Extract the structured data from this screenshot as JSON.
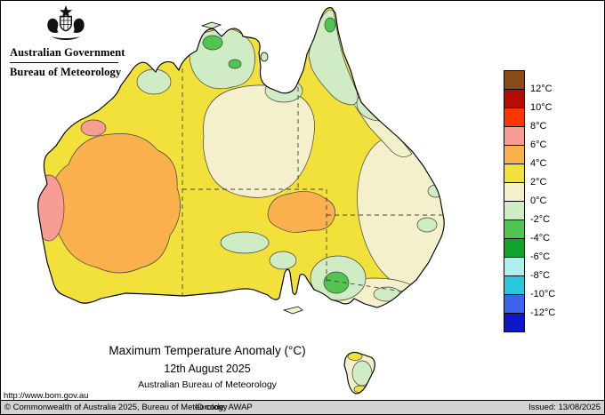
{
  "logo": {
    "government": "Australian Government",
    "bureau": "Bureau of Meteorology"
  },
  "titles": {
    "main": "Maximum Temperature Anomaly (°C)",
    "date": "12th August 2025",
    "org": "Australian Bureau of Meteorology"
  },
  "legend": {
    "labels": [
      "12°C",
      "10°C",
      "8°C",
      "6°C",
      "4°C",
      "2°C",
      "0°C",
      "-2°C",
      "-4°C",
      "-6°C",
      "-8°C",
      "-10°C",
      "-12°C"
    ],
    "colors": [
      "#8a4a17",
      "#b50b00",
      "#fd3500",
      "#f89d94",
      "#fbb04e",
      "#f3e13b",
      "#f4f0cb",
      "#cfecc4",
      "#52c452",
      "#12a32c",
      "#aef0f0",
      "#28c8dc",
      "#3c64f0",
      "#0a18c8"
    ]
  },
  "footer": {
    "url": "http://www.bom.gov.au",
    "copyright": "© Commonwealth of Australia 2025, Bureau of Meteorology",
    "id_code": "ID code: AWAP",
    "issued": "Issued: 13/08/2025"
  }
}
